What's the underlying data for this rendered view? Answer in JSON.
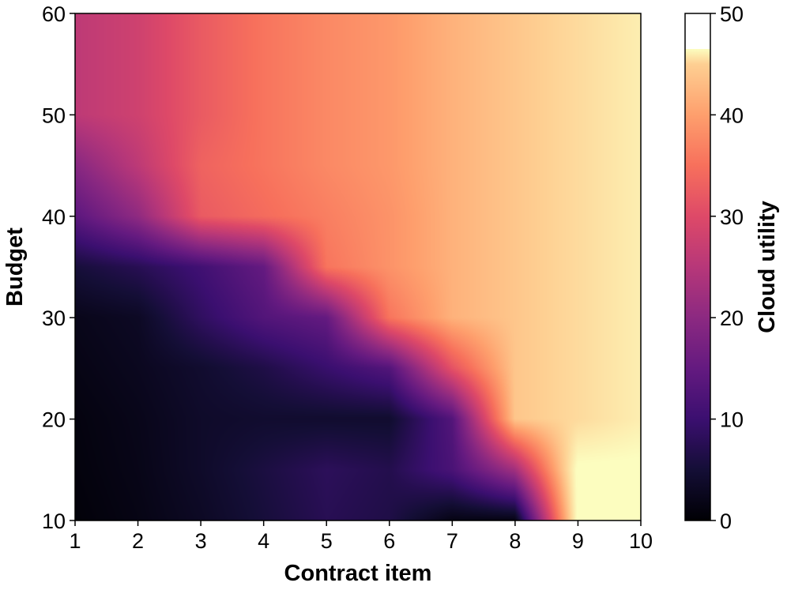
{
  "chart_data": {
    "type": "heatmap",
    "colormap": "magma",
    "xlabel": "Contract item",
    "ylabel": "Budget",
    "xlim": [
      1,
      10
    ],
    "ylim": [
      10,
      60
    ],
    "x_ticks": [
      "1",
      "2",
      "3",
      "4",
      "5",
      "6",
      "7",
      "8",
      "9",
      "10"
    ],
    "y_ticks": [
      "10",
      "20",
      "30",
      "40",
      "50",
      "60"
    ],
    "colorbar": {
      "label": "Cloud utility",
      "range": [
        0,
        50
      ],
      "ticks": [
        "0",
        "10",
        "20",
        "30",
        "40",
        "50"
      ]
    },
    "x": [
      1,
      2,
      3,
      4,
      5,
      6,
      7,
      8,
      9,
      10
    ],
    "y": [
      10,
      15,
      20,
      25,
      30,
      35,
      40,
      45,
      50,
      55,
      60
    ],
    "z": [
      [
        0.5,
        1.5,
        3,
        5,
        7,
        6,
        1.5,
        1.5,
        47,
        47
      ],
      [
        0.8,
        1.8,
        3.5,
        5.5,
        7.5,
        6.5,
        11,
        21,
        47,
        47
      ],
      [
        1,
        2,
        3.5,
        4,
        4,
        4,
        12,
        41,
        43,
        45
      ],
      [
        1.5,
        2.5,
        4,
        6,
        9,
        12,
        29,
        41,
        43,
        45
      ],
      [
        2,
        3,
        8,
        12,
        14,
        33,
        39,
        41,
        43,
        45
      ],
      [
        5,
        7,
        10,
        14,
        33,
        36,
        39,
        41,
        43,
        45
      ],
      [
        13,
        19,
        30,
        32,
        34,
        36,
        39,
        41,
        43,
        45
      ],
      [
        18,
        24,
        31,
        33,
        35,
        36.5,
        39,
        41,
        43,
        45
      ],
      [
        24,
        26,
        30,
        33,
        35,
        36.5,
        39,
        41,
        43,
        45
      ],
      [
        24,
        26,
        30,
        33,
        35,
        36.5,
        39,
        41,
        43,
        45
      ],
      [
        24,
        26,
        30,
        33,
        35,
        36.5,
        39,
        41,
        43,
        45
      ]
    ]
  }
}
